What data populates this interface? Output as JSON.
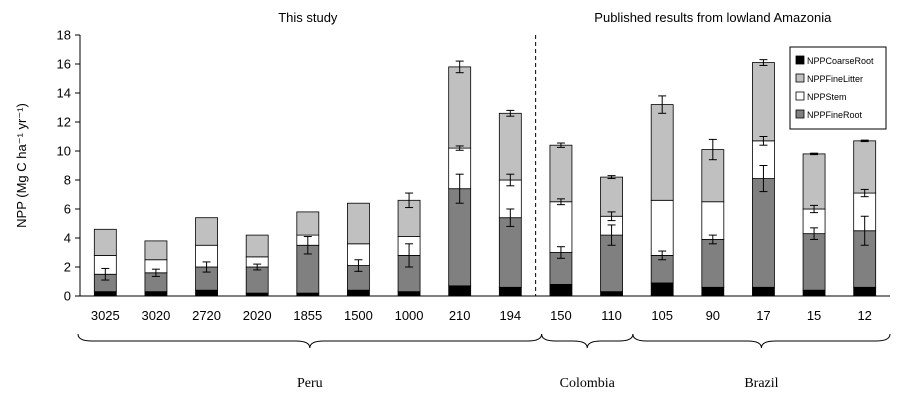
{
  "chart_data": {
    "type": "bar",
    "stacked": true,
    "title": "",
    "ylabel": "NPP (Mg C ha⁻¹ yr⁻¹)",
    "xlabel": "",
    "ylim": [
      0,
      18
    ],
    "yticks": [
      0,
      2,
      4,
      6,
      8,
      10,
      12,
      14,
      16,
      18
    ],
    "grid": false,
    "legend_position": "top-right",
    "categories": [
      "3025",
      "3020",
      "2720",
      "2020",
      "1855",
      "1500",
      "1000",
      "210",
      "194",
      "150",
      "110",
      "105",
      "90",
      "17",
      "15",
      "12"
    ],
    "series": [
      {
        "name": "NPPCoarseRoot",
        "color": "#000000",
        "values": [
          0.3,
          0.3,
          0.4,
          0.2,
          0.2,
          0.4,
          0.3,
          0.7,
          0.6,
          0.8,
          0.3,
          0.9,
          0.6,
          0.6,
          0.4,
          0.6
        ]
      },
      {
        "name": "NPPFineRoot",
        "color": "#808080",
        "values": [
          1.2,
          1.3,
          1.6,
          1.8,
          3.3,
          1.7,
          2.5,
          6.7,
          4.8,
          2.2,
          3.9,
          1.9,
          3.3,
          7.5,
          3.9,
          3.9
        ]
      },
      {
        "name": "NPPStem",
        "color": "#ffffff",
        "values": [
          1.3,
          0.9,
          1.5,
          0.7,
          0.7,
          1.5,
          1.3,
          2.8,
          2.6,
          3.5,
          1.3,
          3.8,
          2.6,
          2.6,
          1.7,
          2.6
        ]
      },
      {
        "name": "NPPFineLitter",
        "color": "#c0c0c0",
        "values": [
          1.8,
          1.3,
          1.9,
          1.5,
          1.6,
          2.8,
          2.5,
          5.6,
          4.6,
          3.9,
          2.7,
          6.6,
          3.6,
          5.4,
          3.8,
          3.6
        ]
      }
    ],
    "errors": {
      "NPPFineRoot": [
        0.4,
        0.25,
        0.35,
        0.2,
        0.6,
        0.4,
        0.8,
        1.0,
        0.6,
        0.4,
        0.7,
        0.3,
        0.3,
        0.9,
        0.4,
        1.0
      ],
      "NPPStem": [
        0.0,
        0.0,
        0.0,
        0.0,
        0.0,
        0.0,
        0.0,
        0.15,
        0.4,
        0.2,
        0.3,
        0.0,
        0.0,
        0.3,
        0.25,
        0.25
      ],
      "NPPFineLitter": [
        0.0,
        0.0,
        0.0,
        0.0,
        0.0,
        0.0,
        0.5,
        0.4,
        0.2,
        0.15,
        0.1,
        0.6,
        0.7,
        0.2,
        0.05,
        0.05
      ]
    },
    "section_labels": [
      "This study",
      "Published results from lowland Amazonia"
    ],
    "country_groups": [
      {
        "label": "Peru",
        "from": 0,
        "to": 10
      },
      {
        "label": "Colombia",
        "from": 9,
        "to": 10
      },
      {
        "label": "Brazil",
        "from": 11,
        "to": 15
      }
    ]
  }
}
